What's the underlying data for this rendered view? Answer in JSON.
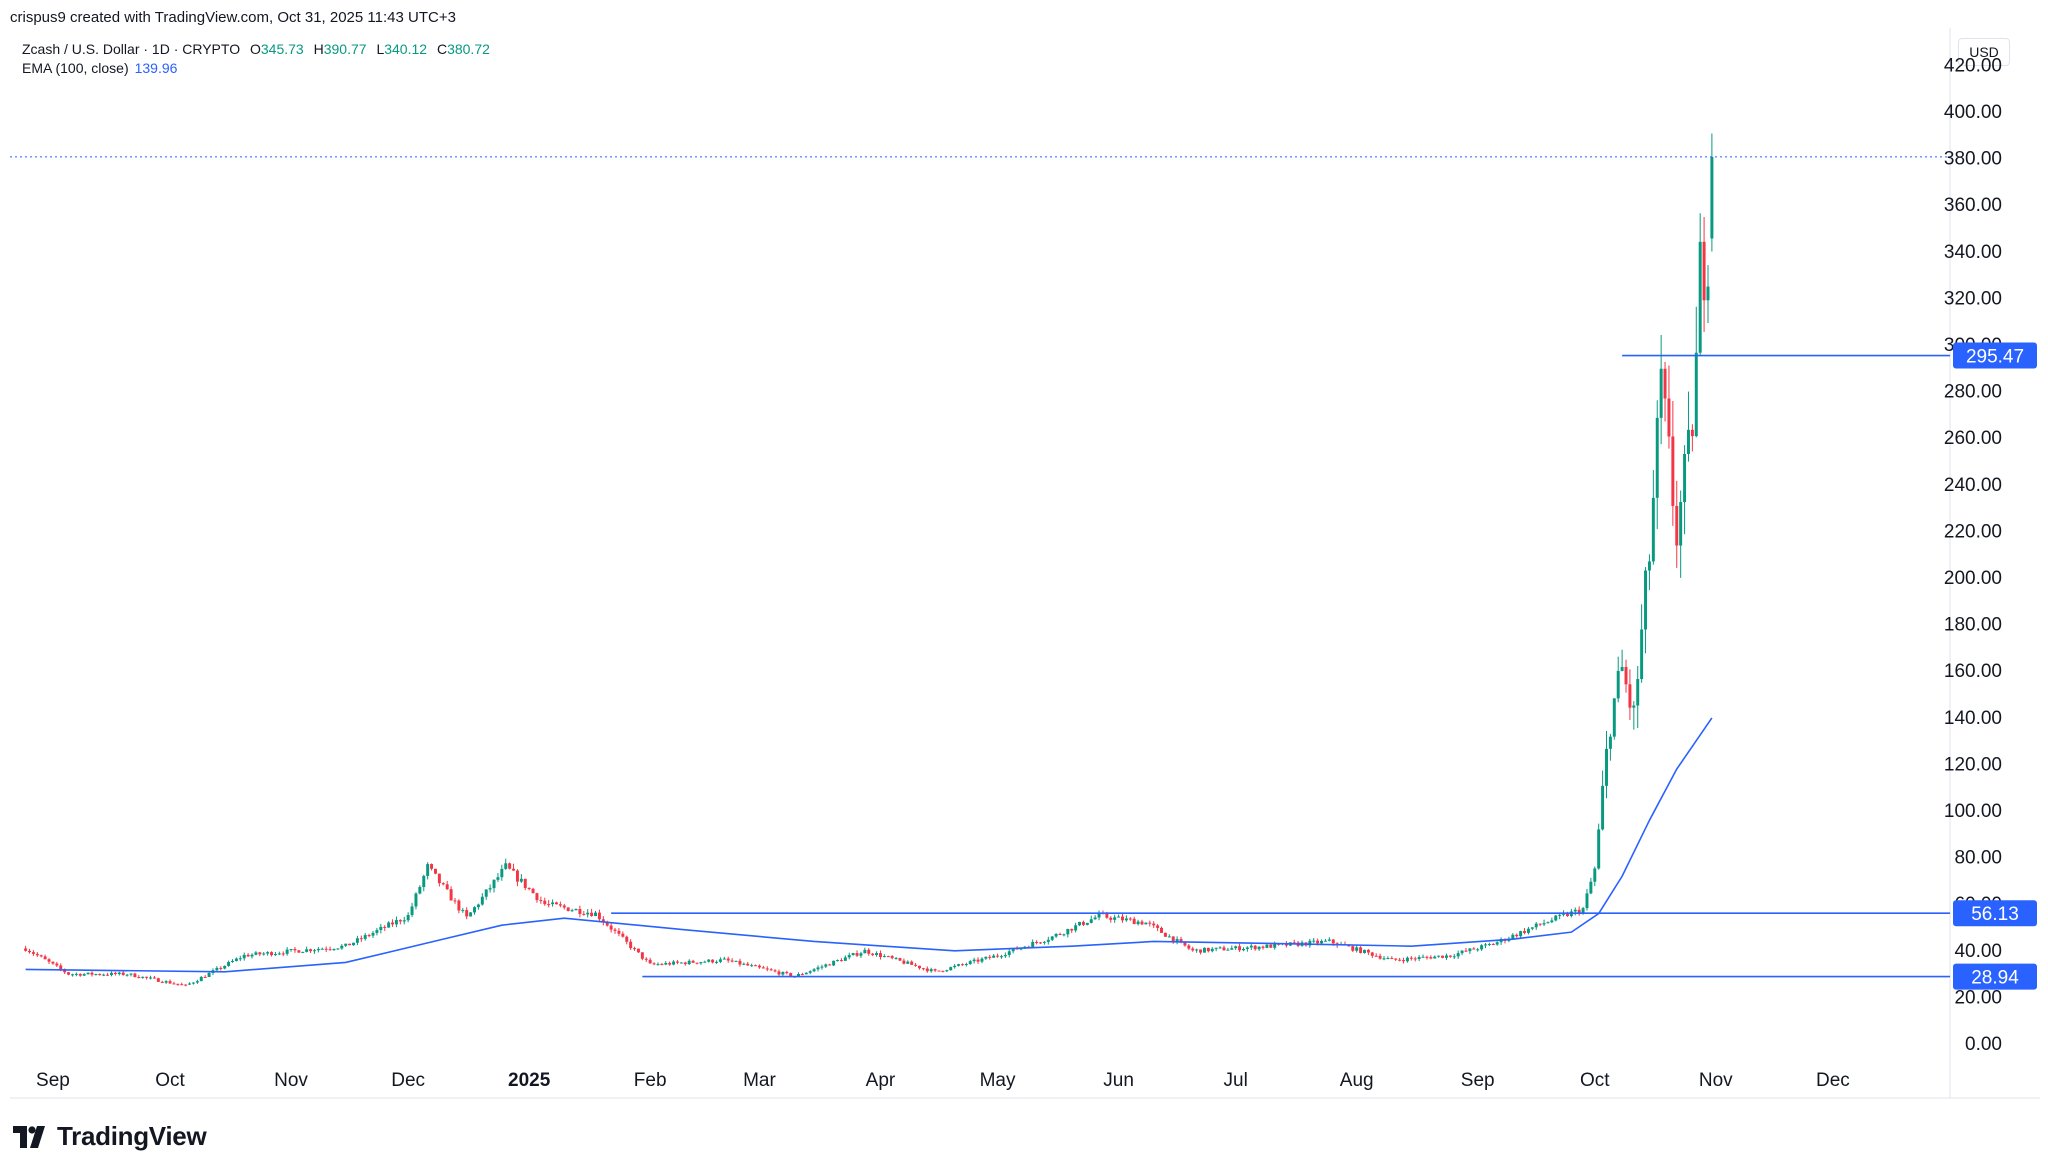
{
  "header": {
    "caption": "crispus9 created with TradingView.com, Oct 31, 2025 11:43 UTC+3"
  },
  "legend": {
    "symbol": "Zcash / U.S. Dollar · 1D · CRYPTO",
    "open_label": "O",
    "open": "345.73",
    "high_label": "H",
    "high": "390.77",
    "low_label": "L",
    "low": "340.12",
    "close_label": "C",
    "close": "380.72",
    "ema_label": "EMA (100, close)",
    "ema_value": "139.96"
  },
  "currency": "USD",
  "brand": "TradingView",
  "colors": {
    "up": "#089981",
    "down": "#f23645",
    "ema": "#2962ff",
    "level_line": "#2962ff",
    "price_line": "#2962ff"
  },
  "chart_data": {
    "type": "candlestick",
    "symbol": "Zcash / U.S. Dollar",
    "timeframe": "1D",
    "y_axis": {
      "ticks": [
        0,
        20,
        40,
        60,
        80,
        100,
        120,
        140,
        160,
        180,
        200,
        220,
        240,
        260,
        280,
        300,
        320,
        340,
        360,
        380,
        400,
        420
      ],
      "range": [
        -4,
        420
      ]
    },
    "x_axis": {
      "labels": [
        "Sep",
        "Oct",
        "Nov",
        "Dec",
        "2025",
        "Feb",
        "Mar",
        "Apr",
        "May",
        "Jun",
        "Jul",
        "Aug",
        "Sep",
        "Oct",
        "Nov",
        "Dec"
      ],
      "bold": "2025"
    },
    "horizontal_levels": [
      {
        "value": 295.47,
        "label": "295.47",
        "from": "2025-10-08"
      },
      {
        "value": 56.13,
        "label": "56.13",
        "from": "2025-01-22"
      },
      {
        "value": 28.94,
        "label": "28.94",
        "from": "2025-01-30"
      }
    ],
    "current_price": 380.72,
    "ema": [
      [
        "2024-08-25",
        32
      ],
      [
        "2024-10-15",
        31
      ],
      [
        "2024-11-15",
        35
      ],
      [
        "2024-12-10",
        45
      ],
      [
        "2024-12-25",
        51
      ],
      [
        "2025-01-10",
        54
      ],
      [
        "2025-02-10",
        49
      ],
      [
        "2025-03-15",
        44
      ],
      [
        "2025-04-20",
        40
      ],
      [
        "2025-05-20",
        42
      ],
      [
        "2025-06-10",
        44
      ],
      [
        "2025-07-15",
        43
      ],
      [
        "2025-08-15",
        42
      ],
      [
        "2025-09-10",
        45
      ],
      [
        "2025-09-25",
        48
      ],
      [
        "2025-10-02",
        56
      ],
      [
        "2025-10-08",
        72
      ],
      [
        "2025-10-15",
        96
      ],
      [
        "2025-10-22",
        118
      ],
      [
        "2025-10-31",
        139.96
      ]
    ],
    "price_path": [
      [
        "2024-08-25",
        41
      ],
      [
        "2024-09-05",
        30
      ],
      [
        "2024-09-20",
        30
      ],
      [
        "2024-10-05",
        25
      ],
      [
        "2024-10-20",
        38
      ],
      [
        "2024-11-15",
        42
      ],
      [
        "2024-12-01",
        55
      ],
      [
        "2024-12-06",
        76
      ],
      [
        "2024-12-16",
        54
      ],
      [
        "2024-12-26",
        76
      ],
      [
        "2025-01-05",
        60
      ],
      [
        "2025-01-18",
        56
      ],
      [
        "2025-02-01",
        34
      ],
      [
        "2025-02-20",
        36
      ],
      [
        "2025-03-10",
        29
      ],
      [
        "2025-03-28",
        40
      ],
      [
        "2025-04-15",
        31
      ],
      [
        "2025-05-01",
        38
      ],
      [
        "2025-05-15",
        46
      ],
      [
        "2025-05-27",
        55
      ],
      [
        "2025-06-08",
        52
      ],
      [
        "2025-06-20",
        40
      ],
      [
        "2025-07-10",
        42
      ],
      [
        "2025-07-25",
        44
      ],
      [
        "2025-08-10",
        36
      ],
      [
        "2025-08-25",
        38
      ],
      [
        "2025-09-05",
        43
      ],
      [
        "2025-09-18",
        52
      ],
      [
        "2025-09-28",
        58
      ],
      [
        "2025-10-01",
        75
      ],
      [
        "2025-10-05",
        140
      ],
      [
        "2025-10-08",
        160
      ],
      [
        "2025-10-11",
        140
      ],
      [
        "2025-10-15",
        210
      ],
      [
        "2025-10-18",
        280
      ],
      [
        "2025-10-22",
        220
      ],
      [
        "2025-10-25",
        250
      ],
      [
        "2025-10-27",
        290
      ],
      [
        "2025-10-28",
        330
      ],
      [
        "2025-10-30",
        345.73
      ],
      [
        "2025-10-31",
        380.72
      ]
    ],
    "last_candle": {
      "date": "2025-10-31",
      "open": 345.73,
      "high": 390.77,
      "low": 340.12,
      "close": 380.72
    }
  }
}
